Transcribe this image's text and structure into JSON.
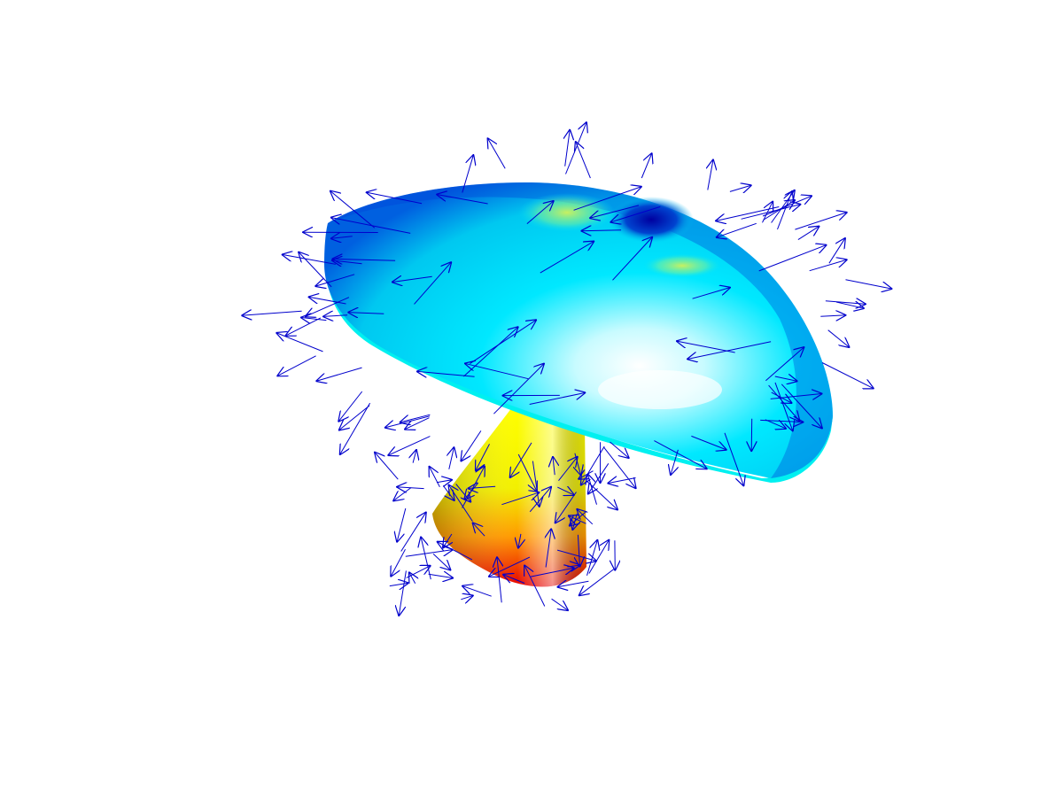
{
  "scene": {
    "subject": "mushroom",
    "background_color": "#ffffff",
    "colormap": "jet",
    "vector_color": "#0000cc",
    "cap_base_color": "#00e5ff",
    "cap_dark_spot_color": "#0000aa",
    "stem_top_color": "#ffff00",
    "stem_bottom_color": "#e60000",
    "rim_color": "#00f0f0",
    "interactive_view": true
  }
}
